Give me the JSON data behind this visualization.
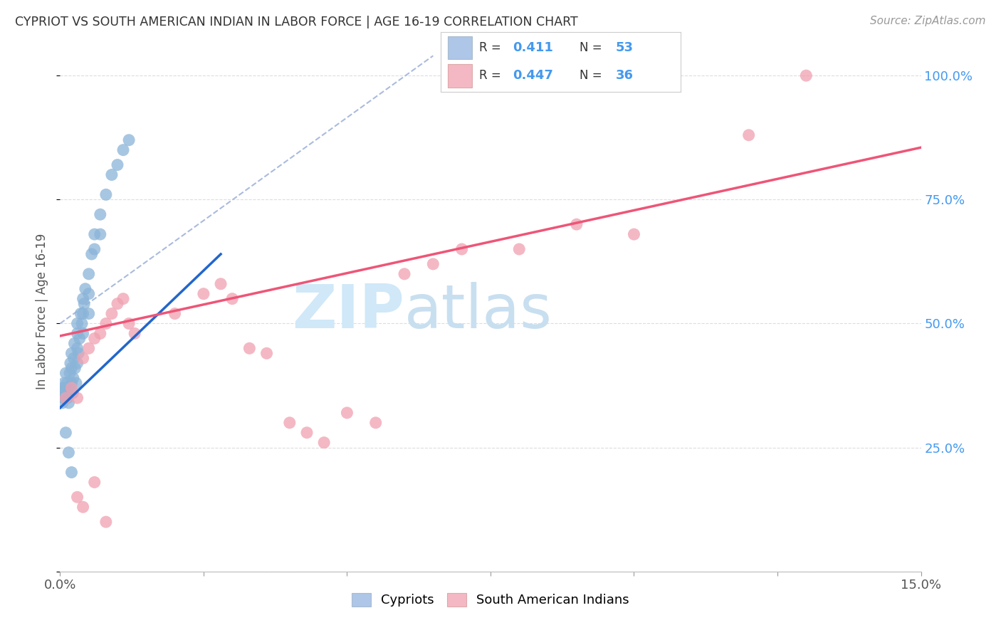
{
  "title": "CYPRIOT VS SOUTH AMERICAN INDIAN IN LABOR FORCE | AGE 16-19 CORRELATION CHART",
  "source": "Source: ZipAtlas.com",
  "ylabel_label": "In Labor Force | Age 16-19",
  "x_min": 0.0,
  "x_max": 0.15,
  "y_min": 0.0,
  "y_max": 1.05,
  "blue_scatter_color": "#8AB4D8",
  "pink_scatter_color": "#F0A0B0",
  "blue_line_color": "#2266CC",
  "pink_line_color": "#EE5577",
  "dash_line_color": "#AABBDD",
  "watermark_color": "#D0E8F8",
  "right_tick_color": "#4499EE",
  "title_color": "#333333",
  "source_color": "#999999",
  "ylabel_color": "#555555",
  "xtick_color": "#555555",
  "grid_color": "#DDDDDD",
  "blue_legend_fill": "#AEC6E8",
  "pink_legend_fill": "#F4B8C4",
  "legend_r1": "R = ",
  "legend_v1": "0.411",
  "legend_n1_label": "N =",
  "legend_n1_val": "53",
  "legend_r2": "R = ",
  "legend_v2": "0.447",
  "legend_n2_label": "N =",
  "legend_n2_val": "36",
  "pink_line_x0": 0.0,
  "pink_line_y0": 0.475,
  "pink_line_x1": 0.15,
  "pink_line_y1": 0.855,
  "blue_line_x0": 0.0,
  "blue_line_y0": 0.33,
  "blue_line_x1": 0.028,
  "blue_line_y1": 0.64,
  "dash_line_x0": 0.0,
  "dash_line_y0": 0.5,
  "dash_line_x1": 0.065,
  "dash_line_y1": 1.04,
  "cypriot_x": [
    0.0003,
    0.0004,
    0.0005,
    0.0006,
    0.0007,
    0.0008,
    0.001,
    0.001,
    0.0012,
    0.0013,
    0.0014,
    0.0015,
    0.0016,
    0.0017,
    0.0018,
    0.002,
    0.002,
    0.002,
    0.0022,
    0.0023,
    0.0024,
    0.0025,
    0.0026,
    0.0028,
    0.003,
    0.003,
    0.003,
    0.003,
    0.0032,
    0.0034,
    0.0036,
    0.0038,
    0.004,
    0.004,
    0.004,
    0.0042,
    0.0044,
    0.005,
    0.005,
    0.005,
    0.0055,
    0.006,
    0.006,
    0.007,
    0.007,
    0.008,
    0.009,
    0.01,
    0.011,
    0.012,
    0.001,
    0.0015,
    0.002
  ],
  "cypriot_y": [
    0.36,
    0.34,
    0.37,
    0.35,
    0.38,
    0.36,
    0.4,
    0.37,
    0.38,
    0.35,
    0.36,
    0.34,
    0.37,
    0.4,
    0.42,
    0.44,
    0.41,
    0.38,
    0.36,
    0.39,
    0.43,
    0.46,
    0.41,
    0.38,
    0.5,
    0.48,
    0.45,
    0.42,
    0.44,
    0.47,
    0.52,
    0.5,
    0.55,
    0.52,
    0.48,
    0.54,
    0.57,
    0.6,
    0.56,
    0.52,
    0.64,
    0.68,
    0.65,
    0.72,
    0.68,
    0.76,
    0.8,
    0.82,
    0.85,
    0.87,
    0.28,
    0.24,
    0.2
  ],
  "sa_indian_x": [
    0.001,
    0.002,
    0.003,
    0.004,
    0.005,
    0.006,
    0.007,
    0.008,
    0.009,
    0.01,
    0.011,
    0.012,
    0.013,
    0.02,
    0.025,
    0.028,
    0.03,
    0.033,
    0.036,
    0.04,
    0.043,
    0.046,
    0.05,
    0.055,
    0.06,
    0.065,
    0.07,
    0.08,
    0.09,
    0.1,
    0.12,
    0.13,
    0.003,
    0.004,
    0.006,
    0.008
  ],
  "sa_indian_y": [
    0.35,
    0.37,
    0.35,
    0.43,
    0.45,
    0.47,
    0.48,
    0.5,
    0.52,
    0.54,
    0.55,
    0.5,
    0.48,
    0.52,
    0.56,
    0.58,
    0.55,
    0.45,
    0.44,
    0.3,
    0.28,
    0.26,
    0.32,
    0.3,
    0.6,
    0.62,
    0.65,
    0.65,
    0.7,
    0.68,
    0.88,
    1.0,
    0.15,
    0.13,
    0.18,
    0.1
  ]
}
